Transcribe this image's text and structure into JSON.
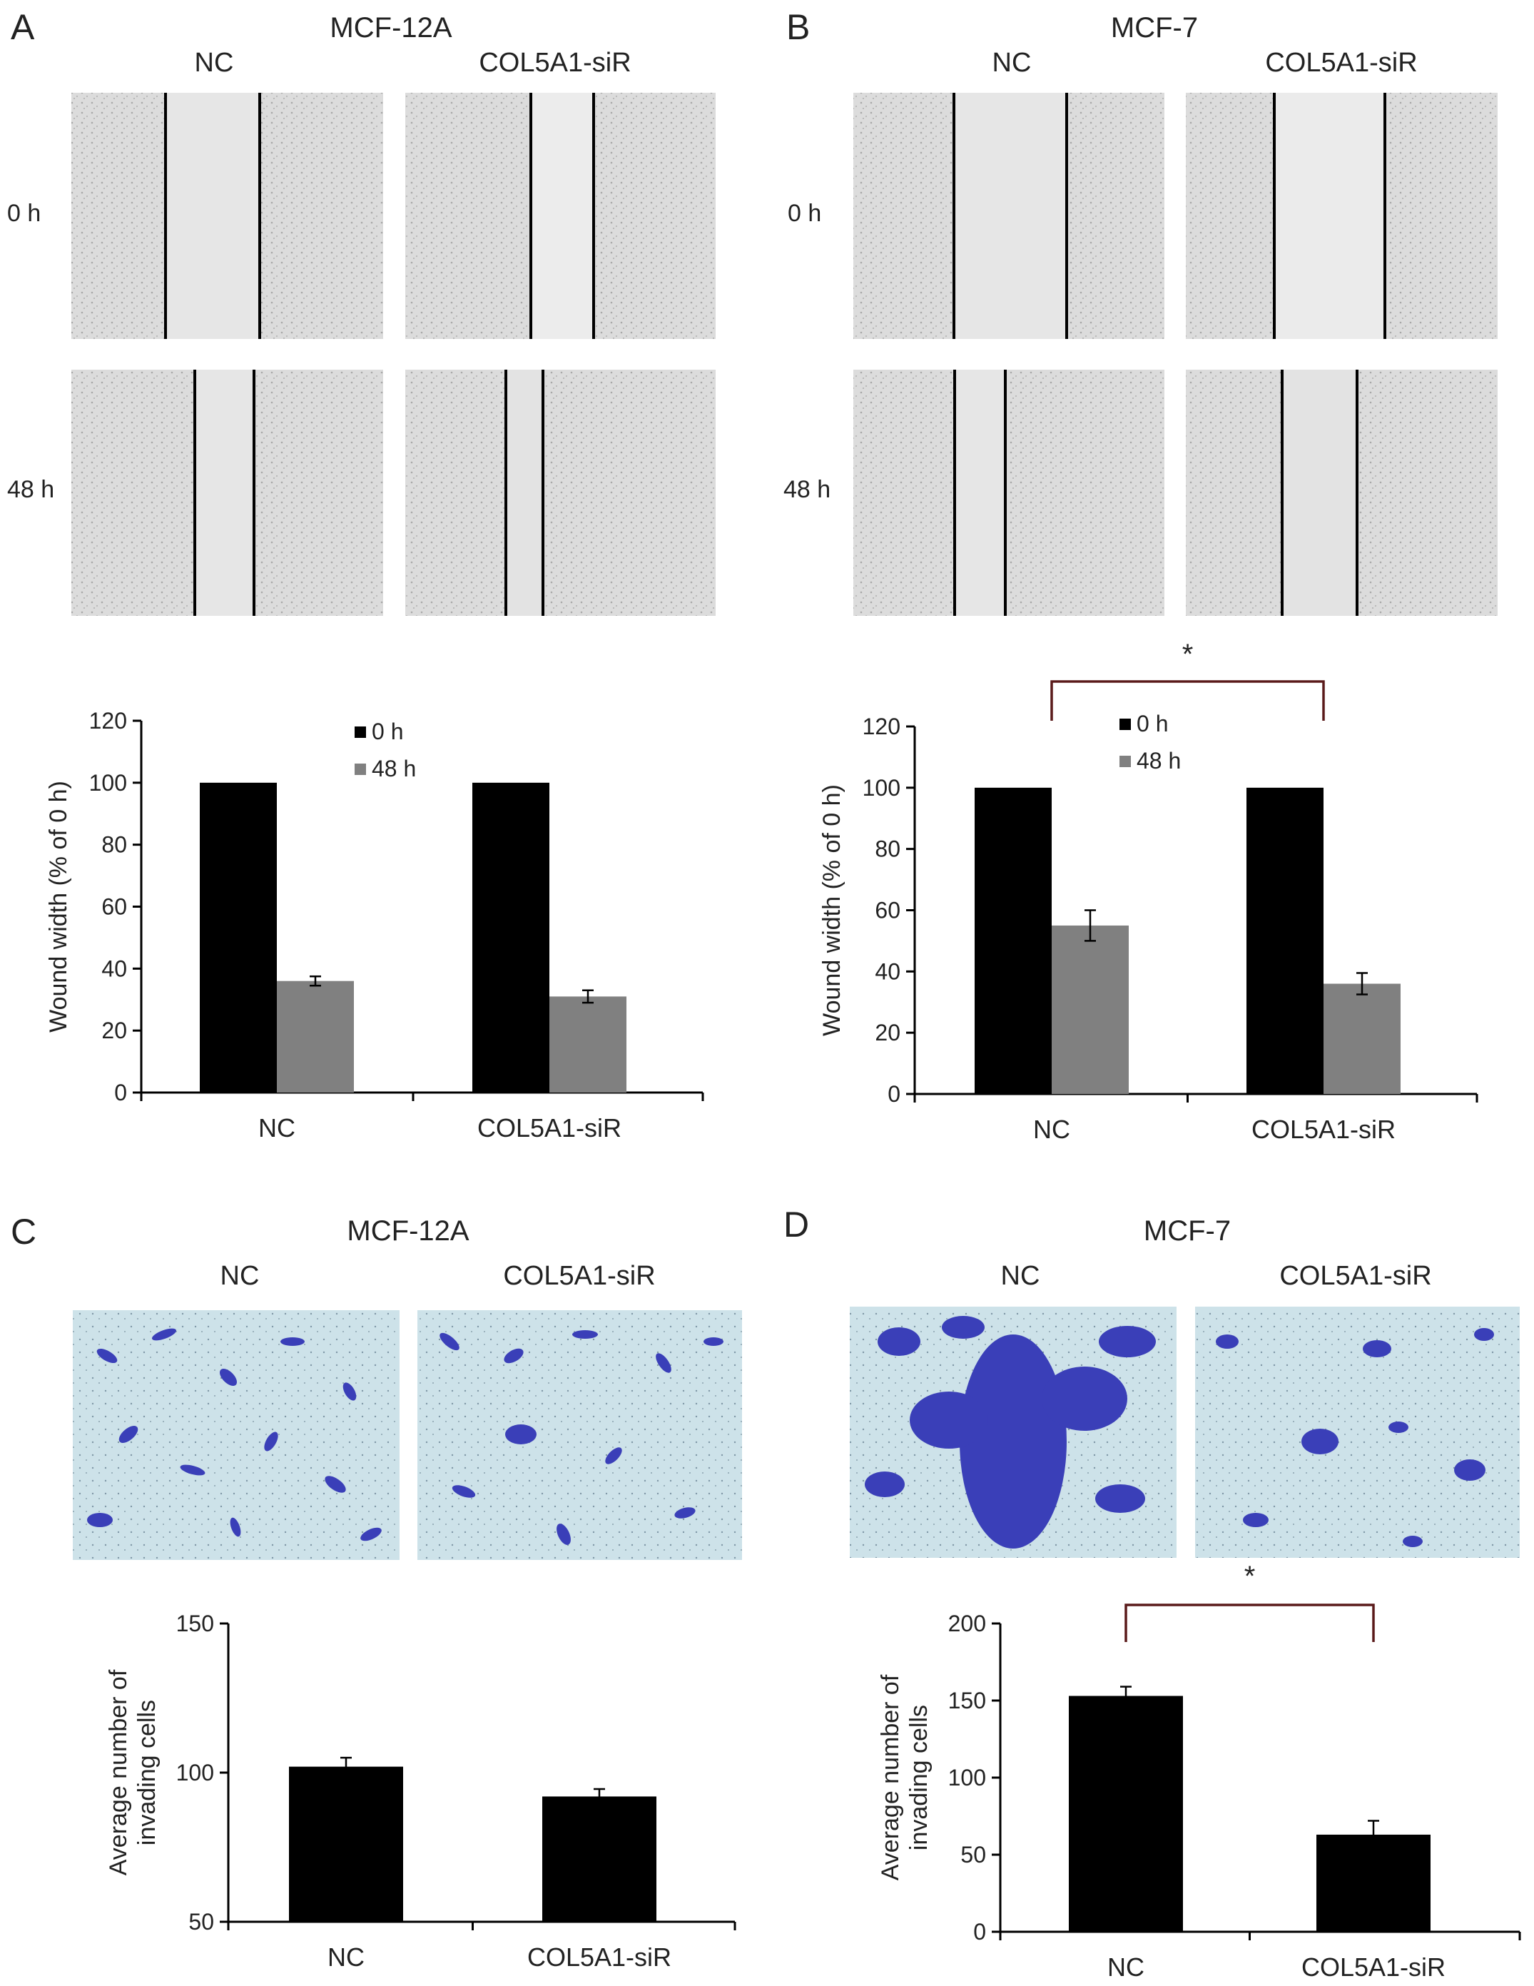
{
  "panels": {
    "A": {
      "letter": "A",
      "cell_line": "MCF-12A",
      "col_labels": [
        "NC",
        "COL5A1-siR"
      ],
      "row_labels": [
        "0 h",
        "48 h"
      ]
    },
    "B": {
      "letter": "B",
      "cell_line": "MCF-7",
      "col_labels": [
        "NC",
        "COL5A1-siR"
      ],
      "row_labels": [
        "0 h",
        "48 h"
      ]
    },
    "C": {
      "letter": "C",
      "cell_line": "MCF-12A",
      "col_labels": [
        "NC",
        "COL5A1-siR"
      ]
    },
    "D": {
      "letter": "D",
      "cell_line": "MCF-7",
      "col_labels": [
        "NC",
        "COL5A1-siR"
      ]
    }
  },
  "colors": {
    "bar_0h": "#000000",
    "bar_48h": "#808080",
    "bar_invasion": "#000000",
    "bracket": "#5a1a1a",
    "invasion_stain": "#3a3fb8",
    "invasion_bg": "#cfe4ea",
    "wound_bg": "#e4e4e4"
  },
  "chart_data": [
    {
      "id": "A",
      "type": "bar",
      "categories": [
        "NC",
        "COL5A1-siR"
      ],
      "series": [
        {
          "name": "0 h",
          "values": [
            100,
            100
          ]
        },
        {
          "name": "48 h",
          "values": [
            36,
            31
          ],
          "errors": [
            1.5,
            2
          ]
        }
      ],
      "ylabel": "Wound width (% of 0 h)",
      "yticks": [
        0,
        20,
        40,
        60,
        80,
        100,
        120
      ],
      "ylim": [
        0,
        120
      ],
      "legend_position": "top-center"
    },
    {
      "id": "B",
      "type": "bar",
      "categories": [
        "NC",
        "COL5A1-siR"
      ],
      "series": [
        {
          "name": "0 h",
          "values": [
            100,
            100
          ]
        },
        {
          "name": "48 h",
          "values": [
            55,
            36
          ],
          "errors": [
            5,
            3.5
          ]
        }
      ],
      "ylabel": "Wound width (% of 0 h)",
      "yticks": [
        0,
        20,
        40,
        60,
        80,
        100,
        120
      ],
      "ylim": [
        0,
        120
      ],
      "legend_position": "top-center",
      "significance": "*"
    },
    {
      "id": "C",
      "type": "bar",
      "categories": [
        "NC",
        "COL5A1-siR"
      ],
      "values": [
        102,
        92
      ],
      "errors": [
        3,
        2.5
      ],
      "ylabel": "Average number of invading cells",
      "yticks": [
        50,
        100,
        150
      ],
      "ylim": [
        50,
        150
      ]
    },
    {
      "id": "D",
      "type": "bar",
      "categories": [
        "NC",
        "COL5A1-siR"
      ],
      "values": [
        153,
        63
      ],
      "errors": [
        6,
        9
      ],
      "ylabel": "Average number of invading cells",
      "yticks": [
        0,
        50,
        100,
        150,
        200
      ],
      "ylim": [
        0,
        200
      ],
      "significance": "*"
    }
  ]
}
